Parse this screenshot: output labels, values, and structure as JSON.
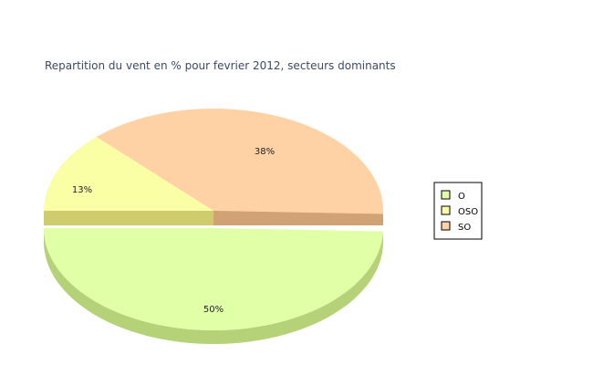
{
  "chart_data": {
    "type": "pie",
    "title": "Repartition du vent en % pour fevrier 2012, secteurs dominants",
    "slices": [
      {
        "label": "O",
        "value": 50,
        "display": "50%",
        "color": "#e0ffa6",
        "side": "#b5d279"
      },
      {
        "label": "OSO",
        "value": 13,
        "display": "13%",
        "color": "#faffa6",
        "side": "#cfcc6e"
      },
      {
        "label": "SO",
        "value": 38,
        "display": "38%",
        "color": "#ffd2a6",
        "side": "#d1a273"
      }
    ],
    "legend": {
      "position": "right",
      "items": [
        "O",
        "OSO",
        "SO"
      ]
    },
    "style": "3d-exploded"
  }
}
